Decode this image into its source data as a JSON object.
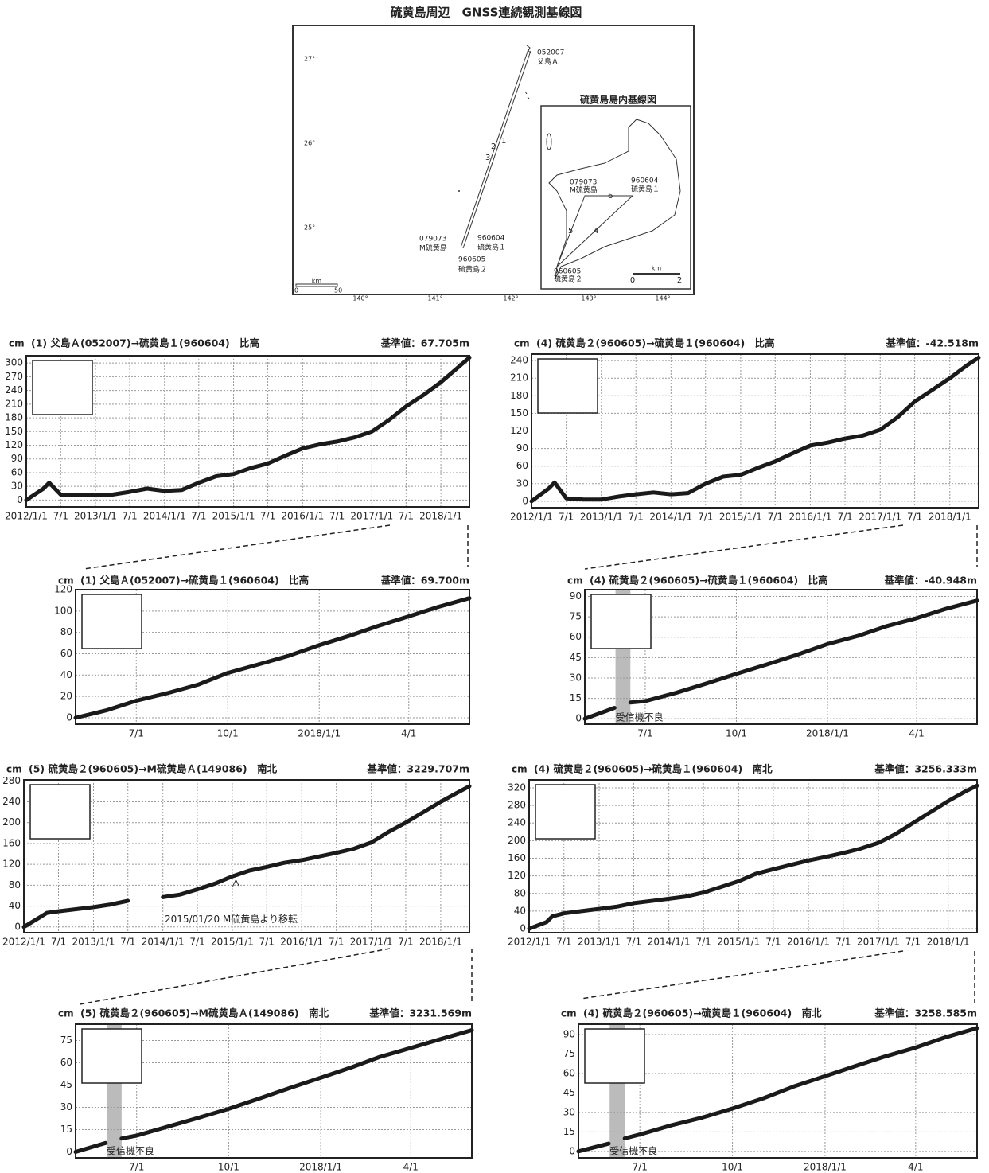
{
  "map": {
    "title": "硫黄島周辺　GNSS連続観測基線図",
    "latitude_labels": [
      "27°",
      "26°",
      "25°"
    ],
    "longitude_labels": [
      "140°",
      "141°",
      "142°",
      "143°",
      "144°"
    ],
    "stations": [
      {
        "code": "052007",
        "name": "父島Ａ"
      },
      {
        "code": "079073",
        "name": "M硫黄島"
      },
      {
        "code": "960604",
        "name": "硫黄島１"
      },
      {
        "code": "960605",
        "name": "硫黄島２"
      }
    ],
    "baselines": [
      "1",
      "2",
      "3"
    ],
    "scale": {
      "unit": "km",
      "zero": 0,
      "max": 50
    },
    "inset": {
      "title": "硫黄島島内基線図",
      "stations": [
        {
          "code": "079073",
          "name": "M硫黄島"
        },
        {
          "code": "960604",
          "name": "硫黄島１"
        },
        {
          "code": "960605",
          "name": "硫黄島２"
        }
      ],
      "baselines": [
        "4",
        "5",
        "6"
      ],
      "scale": {
        "unit": "km",
        "zero": 0,
        "max": 2
      }
    }
  },
  "chart_data": [
    {
      "type": "line",
      "title": "(1) 父島Ａ(052007)→硫黄島１(960604)　比高",
      "baseline_value": "基準値：67.705m",
      "y_label": "cm",
      "grid": true,
      "x": [
        "2012/1/1",
        "2012/4/1",
        "2012/5/1",
        "2012/7/1",
        "2012/10/1",
        "2013/1/1",
        "2013/4/1",
        "2013/7/1",
        "2013/10/1",
        "2014/1/1",
        "2014/4/1",
        "2014/7/1",
        "2014/10/1",
        "2015/1/1",
        "2015/4/1",
        "2015/7/1",
        "2015/10/1",
        "2016/1/1",
        "2016/4/1",
        "2016/7/1",
        "2016/10/1",
        "2017/1/1",
        "2017/4/1",
        "2017/7/1",
        "2017/10/1",
        "2018/1/1",
        "2018/4/1",
        "2018/6/1"
      ],
      "series": [
        {
          "color": "#1a1a1a",
          "values": [
            0,
            25,
            38,
            12,
            12,
            10,
            12,
            18,
            25,
            20,
            22,
            38,
            52,
            57,
            70,
            80,
            97,
            113,
            122,
            128,
            137,
            150,
            175,
            205,
            230,
            258,
            290,
            312
          ]
        }
      ],
      "xlim": [
        "2012/1/1",
        "2018/6/1"
      ],
      "xticks": [
        "2012/1/1",
        {
          "value": "2012/7/1",
          "label": "7/1"
        },
        "2013/1/1",
        {
          "value": "2013/7/1",
          "label": "7/1"
        },
        "2014/1/1",
        {
          "value": "2014/7/1",
          "label": "7/1"
        },
        "2015/1/1",
        {
          "value": "2015/7/1",
          "label": "7/1"
        },
        "2016/1/1",
        {
          "value": "2016/7/1",
          "label": "7/1"
        },
        "2017/1/1",
        {
          "value": "2017/7/1",
          "label": "7/1"
        },
        "2018/1/1"
      ],
      "ylim": [
        -15,
        316
      ],
      "yticks": [
        0,
        30,
        60,
        90,
        120,
        150,
        180,
        210,
        240,
        270,
        300
      ]
    },
    {
      "type": "line",
      "title": "(4) 硫黄島２(960605)→硫黄島１(960604)　比高",
      "baseline_value": "基準値：-42.518m",
      "y_label": "cm",
      "grid": true,
      "x": [
        "2012/1/1",
        "2012/4/1",
        "2012/5/1",
        "2012/7/1",
        "2012/10/1",
        "2013/1/1",
        "2013/4/1",
        "2013/7/1",
        "2013/10/1",
        "2014/1/1",
        "2014/4/1",
        "2014/7/1",
        "2014/10/1",
        "2015/1/1",
        "2015/4/1",
        "2015/7/1",
        "2015/10/1",
        "2016/1/1",
        "2016/4/1",
        "2016/7/1",
        "2016/10/1",
        "2017/1/1",
        "2017/4/1",
        "2017/7/1",
        "2017/10/1",
        "2018/1/1",
        "2018/4/1",
        "2018/6/1"
      ],
      "series": [
        {
          "color": "#1a1a1a",
          "values": [
            0,
            22,
            32,
            5,
            3,
            3,
            8,
            12,
            15,
            12,
            14,
            30,
            42,
            45,
            57,
            68,
            82,
            95,
            100,
            107,
            112,
            122,
            143,
            170,
            190,
            210,
            232,
            245
          ]
        }
      ],
      "xlim": [
        "2012/1/1",
        "2018/6/1"
      ],
      "xticks": [
        "2012/1/1",
        {
          "value": "2012/7/1",
          "label": "7/1"
        },
        "2013/1/1",
        {
          "value": "2013/7/1",
          "label": "7/1"
        },
        "2014/1/1",
        {
          "value": "2014/7/1",
          "label": "7/1"
        },
        "2015/1/1",
        {
          "value": "2015/7/1",
          "label": "7/1"
        },
        "2016/1/1",
        {
          "value": "2016/7/1",
          "label": "7/1"
        },
        "2017/1/1",
        {
          "value": "2017/7/1",
          "label": "7/1"
        },
        "2018/1/1"
      ],
      "ylim": [
        -11,
        251
      ],
      "yticks": [
        0,
        30,
        60,
        90,
        120,
        150,
        180,
        210,
        240
      ]
    },
    {
      "type": "line",
      "title": "(1) 父島Ａ(052007)→硫黄島１(960604)　比高",
      "baseline_value": "基準値：69.700m",
      "y_label": "cm",
      "grid": true,
      "x": [
        "2017/5/1",
        "2017/6/1",
        "2017/7/1",
        "2017/8/1",
        "2017/9/1",
        "2017/10/1",
        "2017/11/1",
        "2017/12/1",
        "2018/1/1",
        "2018/2/1",
        "2018/3/1",
        "2018/4/1",
        "2018/5/1",
        "2018/6/1"
      ],
      "series": [
        {
          "color": "#1a1a1a",
          "values": [
            0,
            7,
            16,
            23,
            31,
            42,
            50,
            58,
            68,
            77,
            86,
            95,
            104,
            112
          ]
        }
      ],
      "xlim": [
        "2017/5/1",
        "2018/6/1"
      ],
      "xticks": [
        {
          "value": "2017/7/1",
          "label": "7/1"
        },
        {
          "value": "2017/10/1",
          "label": "10/1"
        },
        "2018/1/1",
        {
          "value": "2018/4/1",
          "label": "4/1"
        }
      ],
      "ylim": [
        -6,
        120
      ],
      "yticks": [
        0,
        20,
        40,
        60,
        80,
        100,
        120
      ]
    },
    {
      "type": "line",
      "title": "(4) 硫黄島２(960605)→硫黄島１(960604)　比高",
      "baseline_value": "基準値：-40.948m",
      "y_label": "cm",
      "grid": true,
      "x": [
        "2017/5/1",
        "2017/5/31",
        "2017/6/8",
        "2017/6/16",
        "2017/7/1",
        "2017/8/1",
        "2017/9/1",
        "2017/10/1",
        "2017/11/1",
        "2017/12/1",
        "2018/1/1",
        "2018/2/1",
        "2018/3/1",
        "2018/4/1",
        "2018/5/1",
        "2018/6/1"
      ],
      "series": [
        {
          "color": "#1a1a1a",
          "values": [
            0,
            8,
            null,
            12,
            13,
            19,
            26,
            33,
            40,
            47,
            55,
            61,
            68,
            74,
            81,
            87
          ]
        }
      ],
      "shaded_region": [
        "2017/6/1",
        "2017/6/16"
      ],
      "shaded_label": "受信機不良",
      "xlim": [
        "2017/5/1",
        "2018/6/1"
      ],
      "xticks": [
        {
          "value": "2017/7/1",
          "label": "7/1"
        },
        {
          "value": "2017/10/1",
          "label": "10/1"
        },
        "2018/1/1",
        {
          "value": "2018/4/1",
          "label": "4/1"
        }
      ],
      "ylim": [
        -4,
        95
      ],
      "yticks": [
        0,
        15,
        30,
        45,
        60,
        75,
        90
      ]
    },
    {
      "type": "line",
      "title": "(5) 硫黄島２(960605)→M硫黄島Ａ(149086)　南北",
      "baseline_value": "基準値：3229.707m",
      "y_label": "cm",
      "grid": true,
      "x": [
        "2012/1/1",
        "2012/4/1",
        "2012/5/1",
        "2012/7/1",
        "2012/10/1",
        "2013/1/1",
        "2013/4/1",
        "2013/7/1",
        "2013/10/1",
        "2014/1/1",
        "2014/4/1",
        "2014/7/1",
        "2014/10/1",
        "2015/1/1",
        "2015/4/1",
        "2015/7/1",
        "2015/10/1",
        "2016/1/1",
        "2016/4/1",
        "2016/7/1",
        "2016/10/1",
        "2017/1/1",
        "2017/4/1",
        "2017/7/1",
        "2017/10/1",
        "2018/1/1",
        "2018/4/1",
        "2018/6/1"
      ],
      "series": [
        {
          "color": "#1a1a1a",
          "values": [
            0,
            20,
            27,
            30,
            34,
            38,
            43,
            50,
            null,
            57,
            62,
            72,
            83,
            97,
            108,
            115,
            123,
            128,
            135,
            142,
            150,
            162,
            182,
            200,
            220,
            240,
            258,
            270
          ]
        }
      ],
      "annotation": {
        "text": "2015/01/20 M硫黄島より移転",
        "x": "2015/1/20"
      },
      "xlim": [
        "2012/1/1",
        "2018/6/1"
      ],
      "xticks": [
        "2012/1/1",
        {
          "value": "2012/7/1",
          "label": "7/1"
        },
        "2013/1/1",
        {
          "value": "2013/7/1",
          "label": "7/1"
        },
        "2014/1/1",
        {
          "value": "2014/7/1",
          "label": "7/1"
        },
        "2015/1/1",
        {
          "value": "2015/7/1",
          "label": "7/1"
        },
        "2016/1/1",
        {
          "value": "2016/7/1",
          "label": "7/1"
        },
        "2017/1/1",
        {
          "value": "2017/7/1",
          "label": "7/1"
        },
        "2018/1/1"
      ],
      "ylim": [
        -11,
        282
      ],
      "yticks": [
        0,
        40,
        80,
        120,
        160,
        200,
        240,
        280
      ]
    },
    {
      "type": "line",
      "title": "(4) 硫黄島２(960605)→硫黄島１(960604)　南北",
      "baseline_value": "基準値：3256.333m",
      "y_label": "cm",
      "grid": true,
      "x": [
        "2012/1/1",
        "2012/4/1",
        "2012/5/1",
        "2012/7/1",
        "2012/10/1",
        "2013/1/1",
        "2013/4/1",
        "2013/7/1",
        "2013/10/1",
        "2014/1/1",
        "2014/4/1",
        "2014/7/1",
        "2014/10/1",
        "2015/1/1",
        "2015/4/1",
        "2015/7/1",
        "2015/10/1",
        "2016/1/1",
        "2016/4/1",
        "2016/7/1",
        "2016/10/1",
        "2017/1/1",
        "2017/4/1",
        "2017/7/1",
        "2017/10/1",
        "2018/1/1",
        "2018/4/1",
        "2018/6/1"
      ],
      "series": [
        {
          "color": "#1a1a1a",
          "values": [
            0,
            15,
            28,
            35,
            40,
            45,
            50,
            58,
            63,
            68,
            73,
            82,
            95,
            108,
            125,
            135,
            145,
            155,
            163,
            172,
            182,
            195,
            215,
            240,
            265,
            290,
            312,
            325
          ]
        }
      ],
      "xlim": [
        "2012/1/1",
        "2018/6/1"
      ],
      "xticks": [
        "2012/1/1",
        {
          "value": "2012/7/1",
          "label": "7/1"
        },
        "2013/1/1",
        {
          "value": "2013/7/1",
          "label": "7/1"
        },
        "2014/1/1",
        {
          "value": "2014/7/1",
          "label": "7/1"
        },
        "2015/1/1",
        {
          "value": "2015/7/1",
          "label": "7/1"
        },
        "2016/1/1",
        {
          "value": "2016/7/1",
          "label": "7/1"
        },
        "2017/1/1",
        {
          "value": "2017/7/1",
          "label": "7/1"
        },
        "2018/1/1"
      ],
      "ylim": [
        -9,
        338
      ],
      "yticks": [
        0,
        40,
        80,
        120,
        160,
        200,
        240,
        280,
        320
      ]
    },
    {
      "type": "line",
      "title": "(5) 硫黄島２(960605)→M硫黄島Ａ(149086)　南北",
      "baseline_value": "基準値：3231.569m",
      "y_label": "cm",
      "grid": true,
      "x": [
        "2017/5/1",
        "2017/5/31",
        "2017/6/8",
        "2017/6/16",
        "2017/7/1",
        "2017/8/1",
        "2017/9/1",
        "2017/10/1",
        "2017/11/1",
        "2017/12/1",
        "2018/1/1",
        "2018/2/1",
        "2018/3/1",
        "2018/4/1",
        "2018/5/1",
        "2018/6/1"
      ],
      "series": [
        {
          "color": "#1a1a1a",
          "values": [
            0,
            6,
            null,
            9,
            11,
            17,
            23,
            29,
            36,
            43,
            50,
            57,
            64,
            70,
            76,
            82
          ]
        }
      ],
      "shaded_region": [
        "2017/6/1",
        "2017/6/16"
      ],
      "shaded_label": "受信機不良",
      "xlim": [
        "2017/5/1",
        "2018/6/1"
      ],
      "xticks": [
        {
          "value": "2017/7/1",
          "label": "7/1"
        },
        {
          "value": "2017/10/1",
          "label": "10/1"
        },
        "2018/1/1",
        {
          "value": "2018/4/1",
          "label": "4/1"
        }
      ],
      "ylim": [
        -4,
        86
      ],
      "yticks": [
        0,
        15,
        30,
        45,
        60,
        75
      ]
    },
    {
      "type": "line",
      "title": "(4) 硫黄島２(960605)→硫黄島１(960604)　南北",
      "baseline_value": "基準値：3258.585m",
      "y_label": "cm",
      "grid": true,
      "x": [
        "2017/5/1",
        "2017/5/31",
        "2017/6/8",
        "2017/6/16",
        "2017/7/1",
        "2017/8/1",
        "2017/9/1",
        "2017/10/1",
        "2017/11/1",
        "2017/12/1",
        "2018/1/1",
        "2018/2/1",
        "2018/3/1",
        "2018/4/1",
        "2018/5/1",
        "2018/6/1"
      ],
      "series": [
        {
          "color": "#1a1a1a",
          "values": [
            0,
            6,
            null,
            10,
            13,
            20,
            26,
            33,
            41,
            50,
            58,
            66,
            73,
            80,
            88,
            95
          ]
        }
      ],
      "shaded_region": [
        "2017/6/1",
        "2017/6/16"
      ],
      "shaded_label": "受信機不良",
      "xlim": [
        "2017/5/1",
        "2018/6/1"
      ],
      "xticks": [
        {
          "value": "2017/7/1",
          "label": "7/1"
        },
        {
          "value": "2017/10/1",
          "label": "10/1"
        },
        "2018/1/1",
        {
          "value": "2018/4/1",
          "label": "4/1"
        }
      ],
      "ylim": [
        -5,
        98
      ],
      "yticks": [
        0,
        15,
        30,
        45,
        60,
        75,
        90
      ]
    }
  ]
}
